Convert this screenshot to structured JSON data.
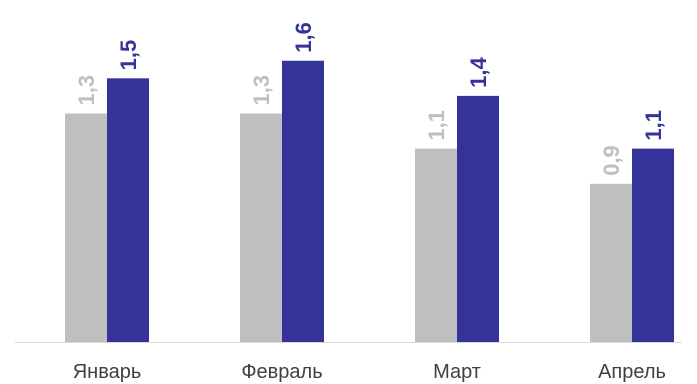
{
  "chart_data": {
    "type": "bar",
    "categories": [
      "Январь",
      "Февраль",
      "Март",
      "Апрель"
    ],
    "series": [
      {
        "values": [
          1.3,
          1.3,
          1.1,
          0.9
        ],
        "labels": [
          "1,3",
          "1,3",
          "1,1",
          "0,9"
        ],
        "color": "#BFBFBF"
      },
      {
        "values": [
          1.5,
          1.6,
          1.4,
          1.1
        ],
        "labels": [
          "1,5",
          "1,6",
          "1,4",
          "1,1"
        ],
        "color": "#333399"
      }
    ],
    "ylim": [
      0,
      1.9
    ],
    "grid": false,
    "legend": "none",
    "axis_color": "#D9D9D9"
  }
}
